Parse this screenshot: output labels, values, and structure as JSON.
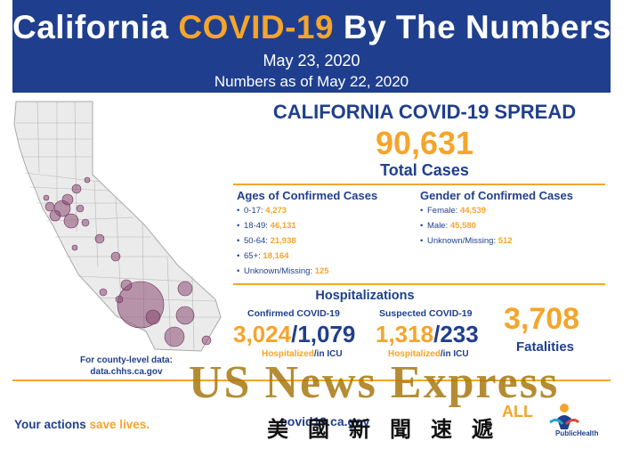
{
  "header": {
    "title_pre": "California ",
    "title_accent": "COVID-19",
    "title_post": " By The Numbers",
    "date": "May 23, 2020",
    "as_of": "Numbers as of May 22, 2020"
  },
  "spread": {
    "title": "CALIFORNIA COVID-19 SPREAD",
    "total": "90,631",
    "total_label": "Total Cases"
  },
  "ages": {
    "title": "Ages of Confirmed Cases",
    "items": [
      {
        "label": "0-17: ",
        "value": "4,273"
      },
      {
        "label": "18-49: ",
        "value": "46,131"
      },
      {
        "label": "50-64: ",
        "value": "21,938"
      },
      {
        "label": "65+: ",
        "value": "18,164"
      },
      {
        "label": "Unknown/Missing: ",
        "value": "125"
      }
    ]
  },
  "gender": {
    "title": "Gender of Confirmed Cases",
    "items": [
      {
        "label": "Female: ",
        "value": "44,539"
      },
      {
        "label": "Male: ",
        "value": "45,580"
      },
      {
        "label": "Unknown/Missing: ",
        "value": "512"
      }
    ]
  },
  "hospitalizations": {
    "title": "Hospitalizations",
    "confirmed": {
      "label": "Confirmed COVID-19",
      "hospitalized": "3,024",
      "slash": "/",
      "icu": "1,079",
      "cap_hospitalized": "Hospitalized",
      "cap_icu": "/in ICU"
    },
    "suspected": {
      "label": "Suspected COVID-19",
      "hospitalized": "1,318",
      "slash": "/",
      "icu": "233",
      "cap_hospitalized": "Hospitalized",
      "cap_icu": "/in ICU"
    }
  },
  "fatalities": {
    "value": "3,708",
    "label": "Fatalities"
  },
  "county": {
    "line1": "For county-level data:",
    "line2": "data.chhs.ca.gov"
  },
  "footer": {
    "actions_pre": "Your actions ",
    "actions_accent": "save lives.",
    "url": "covid19.ca.gov",
    "all": "ALL",
    "logo_text": "PublicHealth"
  },
  "watermark": {
    "line1": "US News Express",
    "line2": "美國新聞速遞"
  },
  "colors": {
    "navy": "#1f3f8e",
    "orange": "#f5a52b",
    "bubble": "#8a4a72"
  }
}
